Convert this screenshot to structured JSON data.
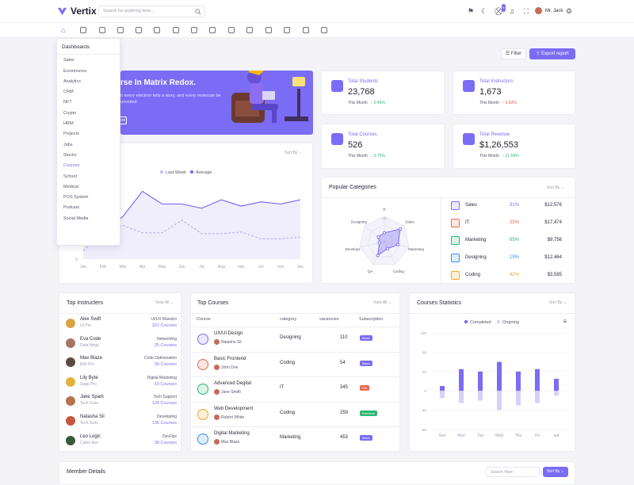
{
  "brand": {
    "name": "Vertix"
  },
  "search": {
    "placeholder": "Search for anything here..."
  },
  "header": {
    "cart_badge": "5",
    "user_name": "Mr. Jack"
  },
  "dropdown": {
    "title": "Dashboards",
    "items": [
      "Sales",
      "Ecommerce",
      "Analytics",
      "CRM",
      "NFT",
      "Crypto",
      "HRM",
      "Projects",
      "Jobs",
      "Stocks",
      "Courses",
      "School",
      "Medical",
      "POS System",
      "Podcast",
      "Social Media"
    ],
    "active": "Courses"
  },
  "toolbar": {
    "filter": "Filter",
    "export": "Export report"
  },
  "hero": {
    "title": "rse In Matrix Redox.",
    "subtitle": "n every electron tells a story, and every molecule be unveiled.",
    "button": "ore"
  },
  "stats": [
    {
      "label": "Total Students",
      "value": "23,768",
      "period": "This Month",
      "change": "↑ 2.45%",
      "dir": "up"
    },
    {
      "label": "Total Instructors",
      "value": "1,673",
      "period": "This Month",
      "change": "↑ 0.62%",
      "dir": "down"
    },
    {
      "label": "Total Courses",
      "value": "526",
      "period": "This Month",
      "change": "↑ 3.75%",
      "dir": "up"
    },
    {
      "label": "Total Revenue",
      "value": "$1,26,553",
      "period": "This Month",
      "change": "↑ 21.54%",
      "dir": "up"
    }
  ],
  "line_card": {
    "sort": "Sort By ⌄",
    "legend": [
      "Last Week",
      "Average"
    ]
  },
  "popular": {
    "title": "Popular Categories",
    "sort": "Sort By ⌄",
    "radar_labels": [
      "IT",
      "Sales",
      "Marketing",
      "Coding",
      "QA",
      "Develops",
      "Designing"
    ],
    "rows": [
      {
        "name": "Sales",
        "pct": "31%",
        "amt": "$12,576",
        "color": "#7b6cf6",
        "bg": "#ece9fe"
      },
      {
        "name": "IT",
        "pct": "25%",
        "amt": "$17,474",
        "color": "#e96b53",
        "bg": "#fde7e2"
      },
      {
        "name": "Marketing",
        "pct": "65%",
        "amt": "$9,756",
        "color": "#2bb673",
        "bg": "#ddf5e8"
      },
      {
        "name": "Designing",
        "pct": "19%",
        "amt": "$12,464",
        "color": "#3b8cf0",
        "bg": "#e0edfd"
      },
      {
        "name": "Coding",
        "pct": "42%",
        "amt": "$3,585",
        "color": "#f4a32b",
        "bg": "#fef0d9"
      }
    ]
  },
  "instructors": {
    "title": "Top Instructers",
    "view": "View All ⌄",
    "rows": [
      {
        "name": "Alex Swift",
        "co": "UI Pro",
        "skill": "UI/UX Maestro",
        "count": "321 Courses",
        "color": "#d9a441"
      },
      {
        "name": "Eva Code",
        "co": "Data Ninja",
        "skill": "Networking",
        "count": "25 Courses",
        "color": "#a77563"
      },
      {
        "name": "Max Blaze",
        "co": "Ethi Pro",
        "skill": "Code Optimization",
        "count": "39 Courses",
        "color": "#5a4a42"
      },
      {
        "name": "Lily Byte",
        "co": "Supp Pro",
        "skill": "Digital Marketing",
        "count": "19 Courses",
        "color": "#e2b23a"
      },
      {
        "name": "Jake Spark",
        "co": "Tech Guru",
        "skill": "Tech Support",
        "count": "124 Courses",
        "color": "#b5734e"
      },
      {
        "name": "Natasha Sil",
        "co": "Tech Guru",
        "skill": "Developing",
        "count": "136 Courses",
        "color": "#c4583e"
      },
      {
        "name": "Leo Logic",
        "co": "Cyber Ace",
        "skill": "DevOps",
        "count": "38 Courses",
        "color": "#3b5a3a"
      }
    ]
  },
  "courses": {
    "title": "Top Courses",
    "view": "View All ⌄",
    "headers": [
      "Course",
      "category",
      "vacancies",
      "Subscription"
    ],
    "rows": [
      {
        "name": "UX/UI Design",
        "by": "Natasha Sil",
        "cat": "Designing",
        "vac": "110",
        "tag": "Basic",
        "tagc": "#7b6cf6",
        "ic": "#ece9fe",
        "icc": "#7b6cf6"
      },
      {
        "name": "Basic Frontend",
        "by": "John Doe",
        "cat": "Coding",
        "vac": "54",
        "tag": "Basic",
        "tagc": "#7b6cf6",
        "ic": "#fde7e2",
        "icc": "#e96b53"
      },
      {
        "name": "Advanced Degital",
        "by": "Jane Smith",
        "cat": "IT",
        "vac": "345",
        "tag": "Pro",
        "tagc": "#e96b53",
        "ic": "#ddf5e8",
        "icc": "#2bb673"
      },
      {
        "name": "Web Development",
        "by": "Robert White",
        "cat": "Coding",
        "vac": "259",
        "tag": "Premium",
        "tagc": "#2bb673",
        "ic": "#fef0d9",
        "icc": "#f4a32b"
      },
      {
        "name": "Digital Marketing",
        "by": "Max Blaze",
        "cat": "Marketing",
        "vac": "453",
        "tag": "Basic",
        "tagc": "#7b6cf6",
        "ic": "#e0edfd",
        "icc": "#3b8cf0"
      }
    ]
  },
  "stats_chart": {
    "title": "Courses Statistics",
    "sort": "Sort By ⌄",
    "legend": [
      "Completed",
      "Ongoing"
    ],
    "menu": "≡"
  },
  "member": {
    "title": "Member Details",
    "search": "Search Here",
    "sort": "Sort By ⌄"
  },
  "chart_data": [
    {
      "type": "line",
      "categories": [
        "Jan",
        "Feb",
        "Mar",
        "Apr",
        "May",
        "Jun",
        "Jul",
        "Aug",
        "sep",
        "oct",
        "nov",
        "dec"
      ],
      "series": [
        {
          "name": "Last Week",
          "values": [
            2,
            6,
            8,
            6.2,
            6.2,
            9.2,
            6,
            6,
            6.4,
            4.8,
            4.8,
            5.2
          ]
        },
        {
          "name": "Average",
          "values": [
            4,
            6.5,
            10,
            16,
            13,
            13,
            12,
            14,
            12.5,
            13.5,
            13,
            14
          ]
        }
      ],
      "ylim": [
        0,
        20
      ],
      "yticks": [
        "0"
      ]
    },
    {
      "type": "radar",
      "categories": [
        "IT",
        "Sales",
        "Marketing",
        "Coding",
        "QA",
        "Develops",
        "Designing"
      ],
      "max_label": "100",
      "values": [
        35,
        80,
        55,
        30,
        60,
        20,
        30
      ]
    },
    {
      "type": "bar",
      "categories": [
        "Sun",
        "Mon",
        "Tue",
        "Wed",
        "Thu",
        "Fri",
        "sat"
      ],
      "series": [
        {
          "name": "Completed",
          "values": [
            10,
            45,
            40,
            60,
            40,
            45,
            25
          ]
        },
        {
          "name": "Ongoing",
          "values": [
            -15,
            -25,
            -20,
            -40,
            -30,
            -25,
            -10
          ]
        }
      ],
      "ylim": [
        -80,
        120
      ],
      "yticks": [
        "120",
        "80",
        "40",
        "0",
        "-40",
        "-80"
      ]
    }
  ]
}
